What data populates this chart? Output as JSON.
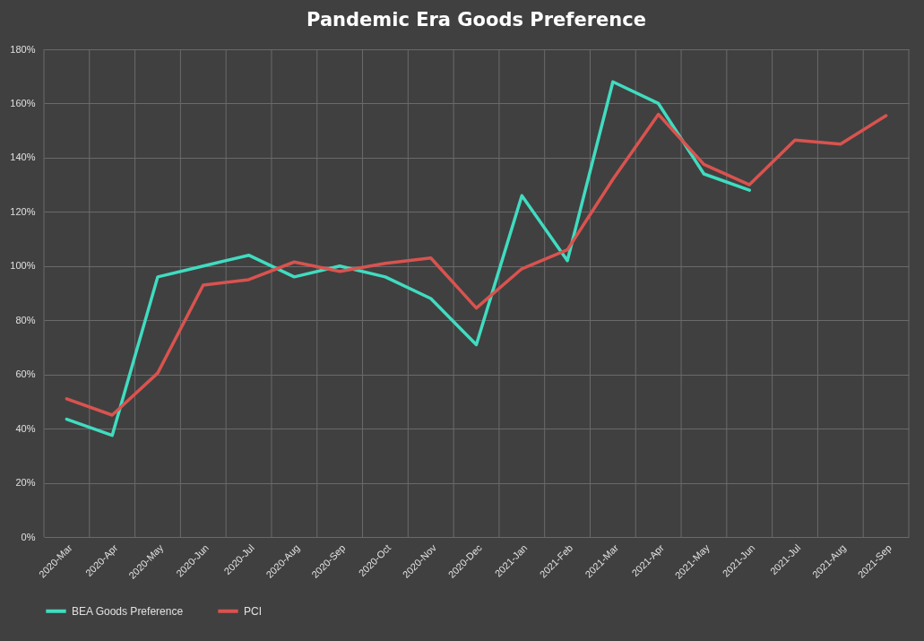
{
  "chart_data": {
    "type": "line",
    "title": "Pandemic Era Goods Preference",
    "categories": [
      "2020-Mar",
      "2020-Apr",
      "2020-May",
      "2020-Jun",
      "2020-Jul",
      "2020-Aug",
      "2020-Sep",
      "2020-Oct",
      "2020-Nov",
      "2020-Dec",
      "2021-Jan",
      "2021-Feb",
      "2021-Mar",
      "2021-Apr",
      "2021-May",
      "2021-Jun",
      "2021-Jul",
      "2021-Aug",
      "2021-Sep"
    ],
    "series": [
      {
        "name": "BEA Goods Preference",
        "color": "#40dcc0",
        "values": [
          43.5,
          37.5,
          96,
          100,
          104,
          96,
          100,
          96,
          88,
          71,
          126,
          102,
          168,
          160,
          134,
          128,
          null,
          null,
          null
        ]
      },
      {
        "name": "PCI",
        "color": "#d9534f",
        "values": [
          51,
          45,
          60.5,
          93,
          95,
          101.5,
          98,
          101,
          103,
          84.5,
          99,
          106,
          132,
          156,
          137.5,
          130,
          146.5,
          145,
          155.5
        ]
      }
    ],
    "ylim": [
      0,
      180
    ],
    "yticks": [
      {
        "value": 0,
        "label": "0%"
      },
      {
        "value": 20,
        "label": "20%"
      },
      {
        "value": 40,
        "label": "40%"
      },
      {
        "value": 60,
        "label": "60%"
      },
      {
        "value": 80,
        "label": "80%"
      },
      {
        "value": 100,
        "label": "100%"
      },
      {
        "value": 120,
        "label": "120%"
      },
      {
        "value": 140,
        "label": "140%"
      },
      {
        "value": 160,
        "label": "160%"
      },
      {
        "value": 180,
        "label": "180%"
      }
    ],
    "grid": true,
    "legend": "bottom",
    "marker": "none",
    "line_style": "solid"
  }
}
